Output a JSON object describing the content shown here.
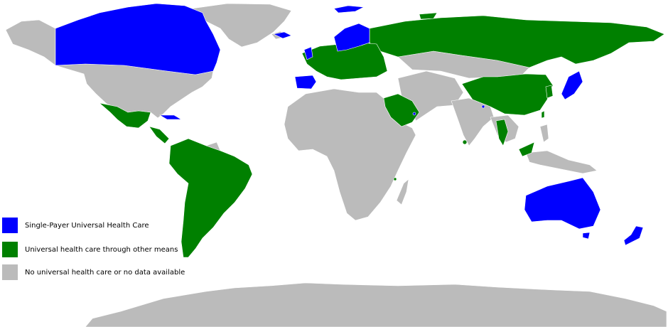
{
  "colors": {
    "single_payer": "#0000ff",
    "other_means": "#008000",
    "no_data": "#bbbbbb",
    "background": "#ffffff"
  },
  "legend": {
    "items": [
      {
        "label": "Single-Payer Universal Health Care",
        "color": "#0000ff"
      },
      {
        "label": "Universal health care through other means",
        "color": "#008000"
      },
      {
        "label": "No universal health care or no data available",
        "color": "#bbbbbb"
      }
    ]
  }
}
